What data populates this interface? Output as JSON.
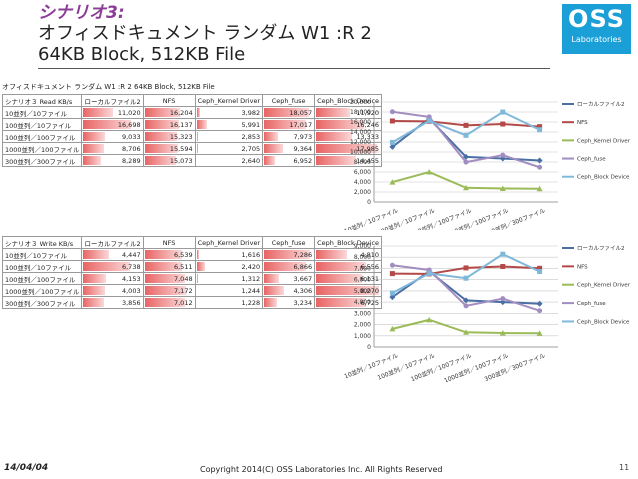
{
  "slide": {
    "scenario": "シナリオ3:",
    "title_line1": "オフィスドキュメント ランダム W1 :R 2",
    "title_line2": "64KB Block, 512KB File",
    "logo_big": "OSS",
    "logo_small": "Laboratories",
    "footer_date": "14/04/04",
    "footer_copyright": "Copyright 2014(C) OSS Laboratories Inc. All Rights Reserved",
    "page_number": "11"
  },
  "read_table": {
    "caption": "オフィスドキュメント ランダム W1 :R 2 64KB Block, 512KB File",
    "header": [
      "シナリオ３ Read KB/s",
      "ローカルファイル2",
      "NFS",
      "Ceph_Kernel Driver",
      "Ceph_fuse",
      "Ceph_Block Device"
    ],
    "rows": [
      {
        "label": "10並列／10ファイル",
        "values": [
          "11,020",
          "16,204",
          "3,982",
          "18,057",
          "11,920"
        ]
      },
      {
        "label": "100並列／10ファイル",
        "values": [
          "16,698",
          "16,137",
          "5,991",
          "17,017",
          "16,246"
        ]
      },
      {
        "label": "100並列／100ファイル",
        "values": [
          "9,033",
          "15,323",
          "2,853",
          "7,973",
          "13,333"
        ]
      },
      {
        "label": "1000並列／100ファイル",
        "values": [
          "8,706",
          "15,594",
          "2,705",
          "9,364",
          "17,985"
        ]
      },
      {
        "label": "300並列／300ファイル",
        "values": [
          "8,289",
          "15,073",
          "2,640",
          "6,952",
          "14,455"
        ]
      }
    ],
    "fill": [
      [
        0.52,
        0.73,
        0.08,
        0.92,
        0.55
      ],
      [
        0.83,
        0.72,
        0.18,
        0.86,
        0.76
      ],
      [
        0.39,
        0.67,
        0.05,
        0.32,
        0.58
      ],
      [
        0.37,
        0.69,
        0.04,
        0.41,
        0.95
      ],
      [
        0.33,
        0.66,
        0.03,
        0.26,
        0.63
      ]
    ]
  },
  "write_table": {
    "header": [
      "シナリオ３ Write KB/s",
      "ローカルファイル2",
      "NFS",
      "Ceph_Kernel Driver",
      "Ceph_fuse",
      "Ceph_Block Device"
    ],
    "rows": [
      {
        "label": "10並列／10ファイル",
        "values": [
          "4,447",
          "6,539",
          "1,616",
          "7,286",
          "4,810"
        ]
      },
      {
        "label": "100並列／10ファイル",
        "values": [
          "6,738",
          "6,511",
          "2,420",
          "6,866",
          "6,556"
        ]
      },
      {
        "label": "100並列／100ファイル",
        "values": [
          "4,153",
          "7,048",
          "1,312",
          "3,667",
          "6,131"
        ]
      },
      {
        "label": "1000並列／100ファイル",
        "values": [
          "4,003",
          "7,172",
          "1,244",
          "4,306",
          "8,270"
        ]
      },
      {
        "label": "300並列／300ファイル",
        "values": [
          "3,856",
          "7,012",
          "1,228",
          "3,234",
          "6,725"
        ]
      }
    ],
    "fill": [
      [
        0.45,
        0.78,
        0.06,
        0.93,
        0.5
      ],
      [
        0.8,
        0.77,
        0.16,
        0.86,
        0.78
      ],
      [
        0.41,
        0.84,
        0.04,
        0.34,
        0.72
      ],
      [
        0.39,
        0.86,
        0.03,
        0.43,
        0.98
      ],
      [
        0.37,
        0.83,
        0.03,
        0.29,
        0.79
      ]
    ]
  },
  "chart_data": [
    {
      "type": "line",
      "categories": [
        "10並列／10ファイル",
        "100並列／10ファイル",
        "100並列／100ファイル",
        "1000並列／100ファイル",
        "300並列／300ファイル"
      ],
      "ylim": [
        0,
        20000
      ],
      "yticks": [
        "0",
        "2,000",
        "4,000",
        "6,000",
        "8,000",
        "10,000",
        "12,000",
        "14,000",
        "16,000",
        "18,000",
        "20,000"
      ],
      "ytick_values": [
        0,
        2000,
        4000,
        6000,
        8000,
        10000,
        12000,
        14000,
        16000,
        18000,
        20000
      ],
      "grid": true,
      "legend": "right",
      "series": [
        {
          "name": "ローカルファイル2",
          "values": [
            11020,
            16698,
            9033,
            8706,
            8289
          ],
          "color": "#4a6fa5"
        },
        {
          "name": "NFS",
          "values": [
            16204,
            16137,
            15323,
            15594,
            15073
          ],
          "color": "#b34a48"
        },
        {
          "name": "Ceph_Kernel Driver",
          "values": [
            3982,
            5991,
            2853,
            2705,
            2640
          ],
          "color": "#9bbb59"
        },
        {
          "name": "Ceph_fuse",
          "values": [
            18057,
            17017,
            7973,
            9364,
            6952
          ],
          "color": "#a18dc0"
        },
        {
          "name": "Ceph_Block Device",
          "values": [
            11920,
            16246,
            13333,
            17985,
            14455
          ],
          "color": "#7fb8d8"
        }
      ]
    },
    {
      "type": "line",
      "categories": [
        "10並列／10ファイル",
        "100並列／10ファイル",
        "100並列／100ファイル",
        "1000並列／100ファイル",
        "300並列／300ファイル"
      ],
      "ylim": [
        0,
        9000
      ],
      "yticks": [
        "0",
        "1,000",
        "2,000",
        "3,000",
        "4,000",
        "5,000",
        "6,000",
        "7,000",
        "8,000",
        "9,000"
      ],
      "ytick_values": [
        0,
        1000,
        2000,
        3000,
        4000,
        5000,
        6000,
        7000,
        8000,
        9000
      ],
      "grid": true,
      "legend": "right",
      "series": [
        {
          "name": "ローカルファイル2",
          "values": [
            4447,
            6738,
            4153,
            4003,
            3856
          ],
          "color": "#4a6fa5"
        },
        {
          "name": "NFS",
          "values": [
            6539,
            6511,
            7048,
            7172,
            7012
          ],
          "color": "#b34a48"
        },
        {
          "name": "Ceph_Kernel Driver",
          "values": [
            1616,
            2420,
            1312,
            1244,
            1228
          ],
          "color": "#9bbb59"
        },
        {
          "name": "Ceph_fuse",
          "values": [
            7286,
            6866,
            3667,
            4306,
            3234
          ],
          "color": "#a18dc0"
        },
        {
          "name": "Ceph_Block Device",
          "values": [
            4810,
            6556,
            6131,
            8270,
            6725
          ],
          "color": "#7fb8d8"
        }
      ]
    }
  ]
}
